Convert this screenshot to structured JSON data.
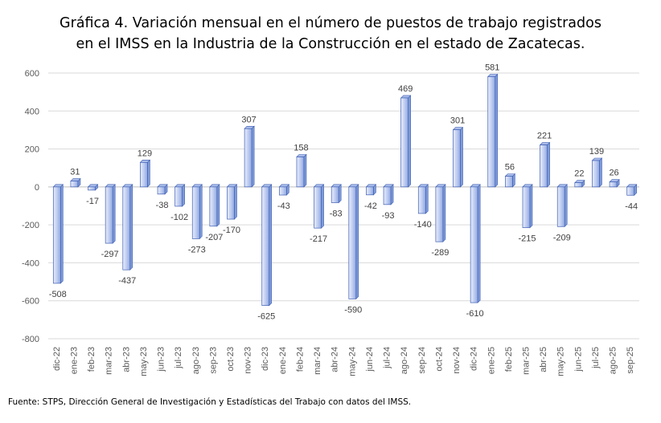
{
  "chart_data": {
    "type": "bar",
    "title": [
      "Gráfica 4. Variación mensual en el número de puestos de trabajo registrados",
      "en el IMSS en la Industria de la Construcción en el estado de Zacatecas."
    ],
    "xlabel": "",
    "ylabel": "",
    "ylim": [
      -800,
      600
    ],
    "yticks": [
      -800,
      -600,
      -400,
      -200,
      0,
      200,
      400,
      600
    ],
    "grid": true,
    "legend": "none",
    "categories": [
      "dic-22",
      "ene-23",
      "feb-23",
      "mar-23",
      "abr-23",
      "may-23",
      "jun-23",
      "jul-23",
      "ago-23",
      "sep-23",
      "oct-23",
      "nov-23",
      "dic-23",
      "ene-24",
      "feb-24",
      "mar-24",
      "abr-24",
      "may-24",
      "jun-24",
      "jul-24",
      "ago-24",
      "sep-24",
      "oct-24",
      "nov-24",
      "dic-24",
      "ene-25",
      "feb-25",
      "mar-25",
      "abr-25",
      "may-25",
      "jun-25",
      "jul-25",
      "ago-25",
      "sep-25"
    ],
    "series": [
      {
        "name": "Variación mensual",
        "values": [
          -508,
          31,
          -17,
          -297,
          -437,
          129,
          -38,
          -102,
          -273,
          -207,
          -170,
          307,
          -625,
          -43,
          158,
          -217,
          -83,
          -590,
          -42,
          -93,
          469,
          -140,
          -289,
          301,
          -610,
          581,
          56,
          -215,
          221,
          -209,
          22,
          139,
          26,
          -44
        ]
      }
    ],
    "colors": {
      "bar_light": "#e6ecfa",
      "bar_dark": "#7f9bd8",
      "bar_top": "#aabde9",
      "bar_edge": "#3f5fb3",
      "grid": "#d9d9d9",
      "axis": "#bfbfbf"
    }
  },
  "source": "Fuente: STPS, Dirección General de Investigación y Estadísticas del Trabajo con datos del IMSS."
}
